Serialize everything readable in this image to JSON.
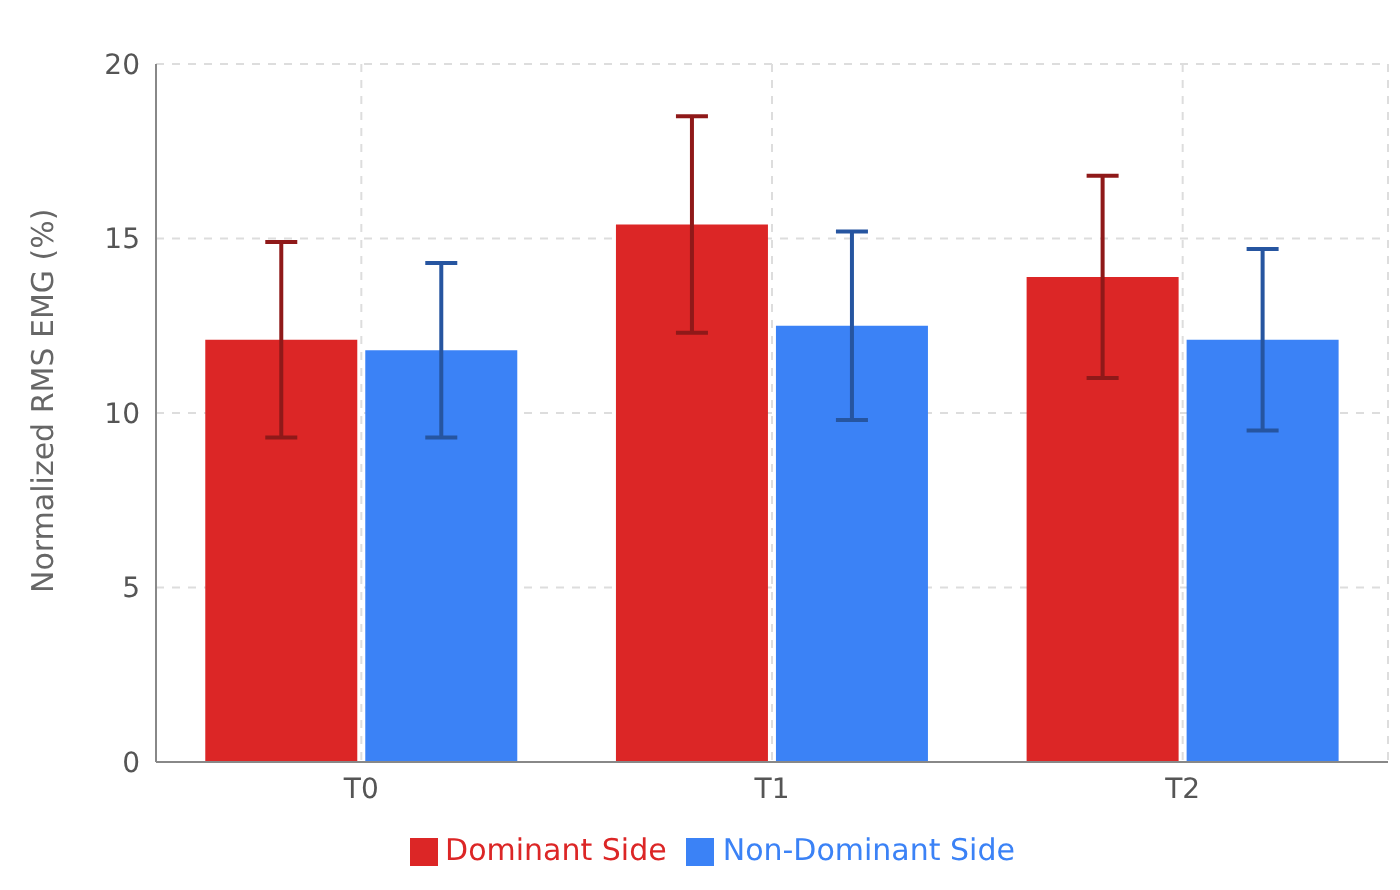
{
  "chart_data": {
    "type": "bar",
    "ylabel": "Normalized RMS EMG (%)",
    "categories": [
      "T0",
      "T1",
      "T2"
    ],
    "series": [
      {
        "name": "Dominant Side",
        "color": "#dc2626",
        "values": [
          12.1,
          15.4,
          13.9
        ],
        "errors": [
          2.8,
          3.1,
          2.9
        ]
      },
      {
        "name": "Non-Dominant Side",
        "color": "#3b82f6",
        "values": [
          11.8,
          12.5,
          12.1
        ],
        "errors": [
          2.5,
          2.7,
          2.6
        ]
      }
    ],
    "ylim": [
      0,
      20
    ],
    "yticks": [
      0,
      5,
      10,
      15,
      20
    ],
    "grid": true,
    "legend": "bottom"
  }
}
